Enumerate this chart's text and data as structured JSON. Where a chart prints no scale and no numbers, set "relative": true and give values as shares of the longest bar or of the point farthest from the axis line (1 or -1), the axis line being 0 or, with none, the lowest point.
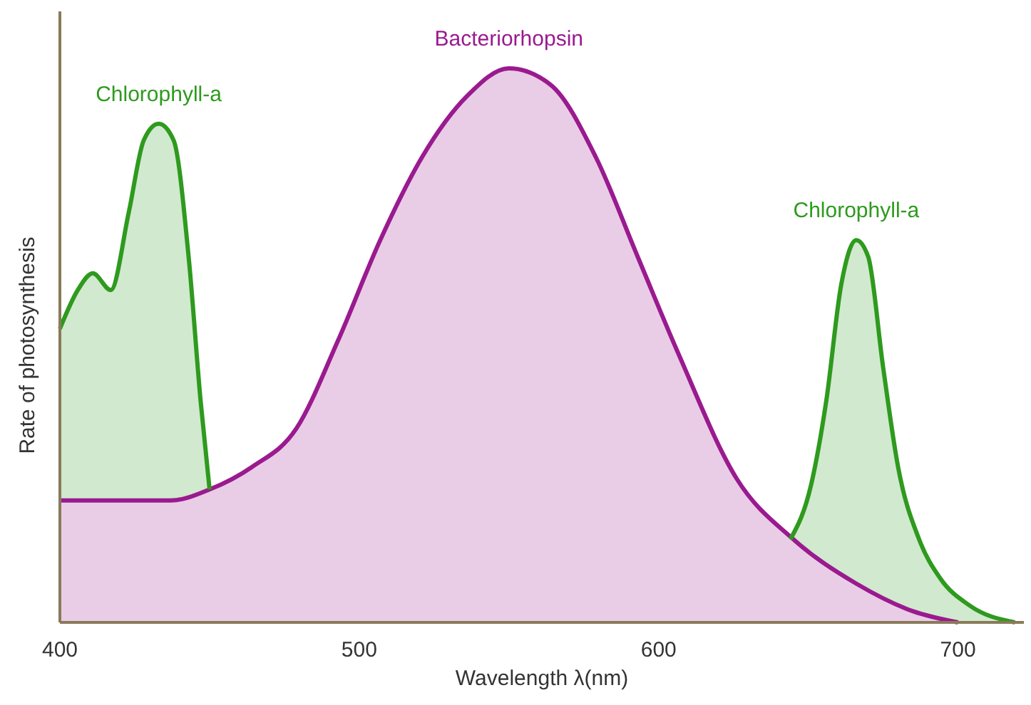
{
  "chart_data": {
    "type": "area",
    "relative": true,
    "xlabel": "Wavelength λ(nm)",
    "ylabel": "Rate of photosynthesis",
    "xlim": [
      400,
      722
    ],
    "xticks": [
      400,
      500,
      600,
      700
    ],
    "tick_labels": "x",
    "grid": false,
    "series": [
      {
        "name": "Bacteriorhopsin",
        "color": "#9a1a8f",
        "x": [
          400,
          437,
          450,
          464,
          479,
          493,
          507,
          521,
          536,
          550,
          564,
          579,
          593,
          607,
          626,
          645,
          666,
          685,
          700
        ],
        "values": [
          0.22,
          0.22,
          0.24,
          0.28,
          0.35,
          0.51,
          0.69,
          0.84,
          0.95,
          1,
          0.97,
          0.84,
          0.66,
          0.48,
          0.26,
          0.15,
          0.07,
          0.02,
          0
        ]
      },
      {
        "name": "Chlorophyll-a",
        "color": "#2e9a1e",
        "x": [
          400,
          406,
          411,
          417,
          423,
          428,
          433,
          438,
          443,
          447,
          450
        ],
        "values": [
          0.53,
          0.6,
          0.63,
          0.6,
          0.74,
          0.87,
          0.9,
          0.87,
          0.66,
          0.4,
          0.24
        ]
      },
      {
        "name": "Chlorophyll-a",
        "color": "#2e9a1e",
        "x": [
          644,
          651,
          656,
          661,
          666,
          670,
          675,
          680,
          687,
          694,
          704,
          719
        ],
        "values": [
          0.15,
          0.25,
          0.4,
          0.61,
          0.69,
          0.66,
          0.46,
          0.28,
          0.15,
          0.08,
          0.03,
          0
        ]
      }
    ]
  }
}
